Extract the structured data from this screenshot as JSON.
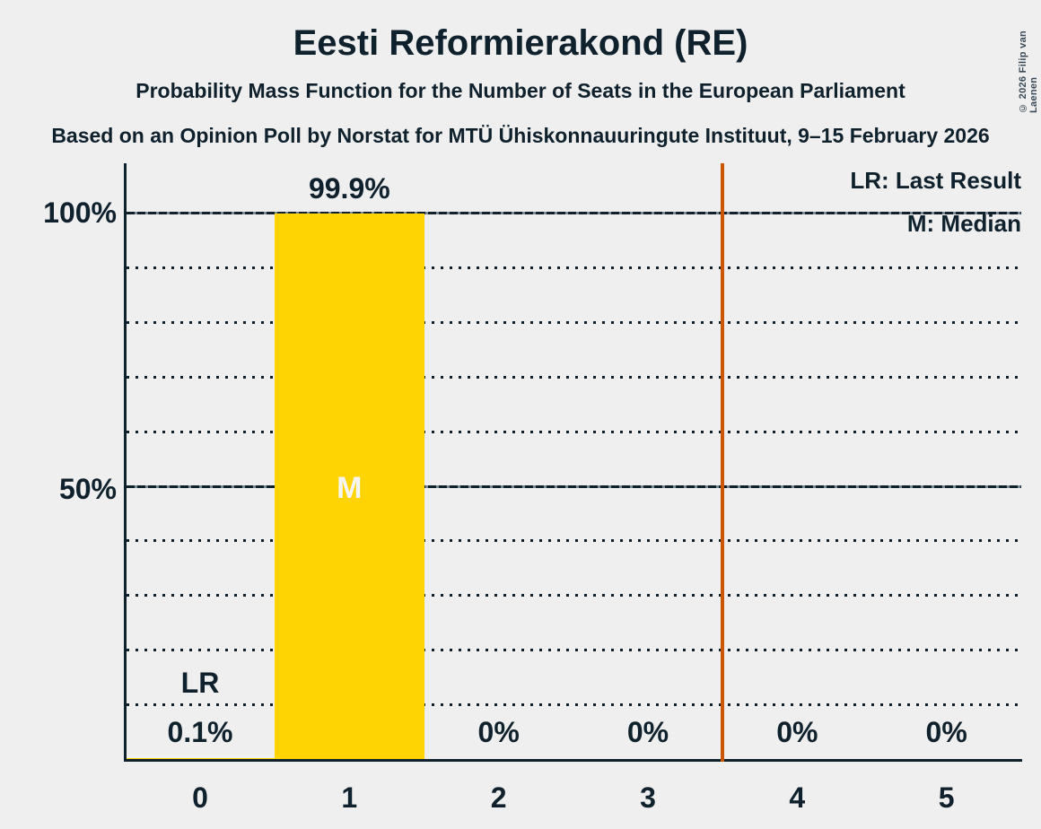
{
  "title": "Eesti Reformierakond (RE)",
  "subtitle": "Probability Mass Function for the Number of Seats in the European Parliament",
  "source_line": "Based on an Opinion Poll by Norstat for MTÜ Ühiskonnauuringute Instituut, 9–15 February 2026",
  "copyright": "© 2026 Filip van Laenen",
  "legend": {
    "last_result": "LR: Last Result",
    "median": "M: Median"
  },
  "y_axis": {
    "labels": [
      "100%",
      "50%"
    ]
  },
  "colors": {
    "background": "#EFEFEF",
    "text": "#10212E",
    "bar": "#FFD400",
    "median_label": "#F5F5F5",
    "vertical_line": "#CC5500"
  },
  "chart_data": {
    "type": "bar",
    "title": "Eesti Reformierakond (RE)",
    "categories": [
      "0",
      "1",
      "2",
      "3",
      "4",
      "5"
    ],
    "values": [
      0.1,
      99.9,
      0,
      0,
      0,
      0
    ],
    "value_labels": [
      "0.1%",
      "99.9%",
      "0%",
      "0%",
      "0%",
      "0%"
    ],
    "ylim": [
      0,
      100
    ],
    "gridline_interval_pct": 10,
    "solid_gridlines_pct": [
      50,
      100
    ],
    "legend_position": "top-right",
    "median_index": 1,
    "median_marker": "M",
    "last_result_index": 0,
    "last_result_marker": "LR",
    "vertical_line_x": 3.5
  }
}
